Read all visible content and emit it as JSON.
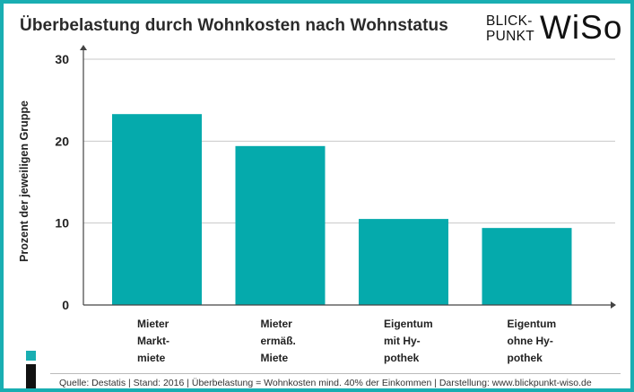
{
  "header": {
    "title": "Überbelastung durch Wohnkosten nach Wohnstatus"
  },
  "logo": {
    "line1": "BLICK-",
    "line2": "PUNKT",
    "big": "WiSo"
  },
  "colors": {
    "accent": "#19aeb2",
    "bar": "#05aaac",
    "axis": "#444444",
    "grid": "#c8c8c8"
  },
  "chart_data": {
    "type": "bar",
    "title": "Überbelastung durch Wohnkosten nach Wohnstatus",
    "xlabel": "",
    "ylabel": "Prozent der jeweiligen Gruppe",
    "ylim": [
      0,
      30
    ],
    "yticks": [
      "0",
      "10",
      "20",
      "30"
    ],
    "grid": true,
    "categories": [
      [
        "Mieter",
        "Markt-",
        "miete"
      ],
      [
        "Mieter",
        "ermäß.",
        "Miete"
      ],
      [
        "Eigentum",
        "mit Hy-",
        "pothek"
      ],
      [
        "Eigentum",
        "ohne Hy-",
        "pothek"
      ]
    ],
    "values": [
      23.3,
      19.4,
      10.5,
      9.4
    ]
  },
  "footer": {
    "text": "Quelle: Destatis  |  Stand: 2016  |  Überbelastung = Wohnkosten mind. 40% der Einkommen  |  Darstellung: www.blickpunkt-wiso.de"
  }
}
